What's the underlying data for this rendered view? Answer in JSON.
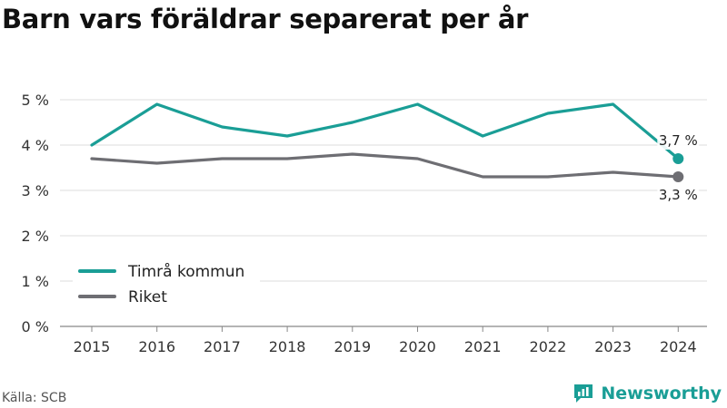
{
  "title": "Barn vars föräldrar separerat per år",
  "source": "Källa: SCB",
  "brand": {
    "name": "Newsworthy",
    "icon": "newsworthy-logo-icon",
    "color": "#1a9e96"
  },
  "chart_data": {
    "type": "line",
    "title": "Barn vars föräldrar separerat per år",
    "x": [
      "2015",
      "2016",
      "2017",
      "2018",
      "2019",
      "2020",
      "2021",
      "2022",
      "2023",
      "2024"
    ],
    "ylim": [
      0,
      5
    ],
    "yticks": [
      0,
      1,
      2,
      3,
      4,
      5
    ],
    "ytick_labels": [
      "0 %",
      "1 %",
      "2 %",
      "3 %",
      "4 %",
      "5 %"
    ],
    "grid": true,
    "legend_position": "bottom-left",
    "series": [
      {
        "name": "Timrå kommun",
        "color": "#1a9e96",
        "values": [
          4.0,
          4.9,
          4.4,
          4.2,
          4.5,
          4.9,
          4.2,
          4.7,
          4.9,
          3.7
        ],
        "end_label": "3,7 %"
      },
      {
        "name": "Riket",
        "color": "#6e6e73",
        "values": [
          3.7,
          3.6,
          3.7,
          3.7,
          3.8,
          3.7,
          3.3,
          3.3,
          3.4,
          3.3
        ],
        "end_label": "3,3 %"
      }
    ]
  }
}
